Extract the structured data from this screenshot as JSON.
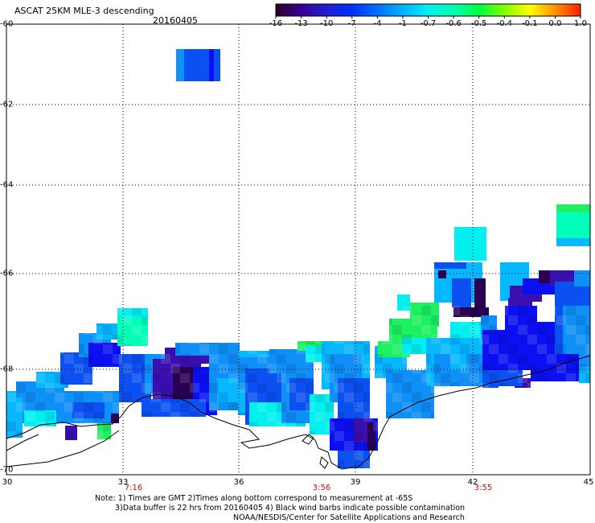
{
  "header": {
    "title": "ASCAT 25KM MLE-3 descending",
    "date": "20160405"
  },
  "colorbar": {
    "labels": [
      "-16",
      "-13",
      "-10",
      "-7",
      "-4",
      "-1",
      "-0.7",
      "-0.6",
      "-0.5",
      "-0.4",
      "-0.1",
      "0.0",
      "1.0"
    ],
    "colors": [
      "#2a0028",
      "#3a0090",
      "#2020d0",
      "#0030ff",
      "#0070ff",
      "#00b0ff",
      "#00f0f0",
      "#00ffb0",
      "#00ff40",
      "#80ff00",
      "#ffff00",
      "#ff9000",
      "#ff2000"
    ]
  },
  "axes": {
    "y_labels": [
      "-60",
      "-62",
      "-64",
      "-66",
      "-68",
      "-70"
    ],
    "x_labels": [
      "30",
      "33",
      "36",
      "39",
      "42",
      "45"
    ]
  },
  "times": [
    "7:16",
    "3:56",
    "3:55"
  ],
  "notes": {
    "line1": "Note: 1) Times are GMT 2)Times along bottom correspond to measurement at -65S",
    "line2": "3)Data buffer is 22 hrs from 20160405 4) Black wind barbs indicate possible contamination",
    "line3": "NOAA/NESDIS/Center for Satellite Applications and Research"
  },
  "palette": {
    "deep": "#2a0050",
    "violet": "#3a10b0",
    "blue": "#0a10f0",
    "mid": "#0b50f0",
    "light": "#0e90f6",
    "sky": "#05b8ff",
    "cyan": "#00f0f0",
    "aqua": "#00ffb8",
    "green": "#1ef060",
    "coast": "#000000"
  }
}
